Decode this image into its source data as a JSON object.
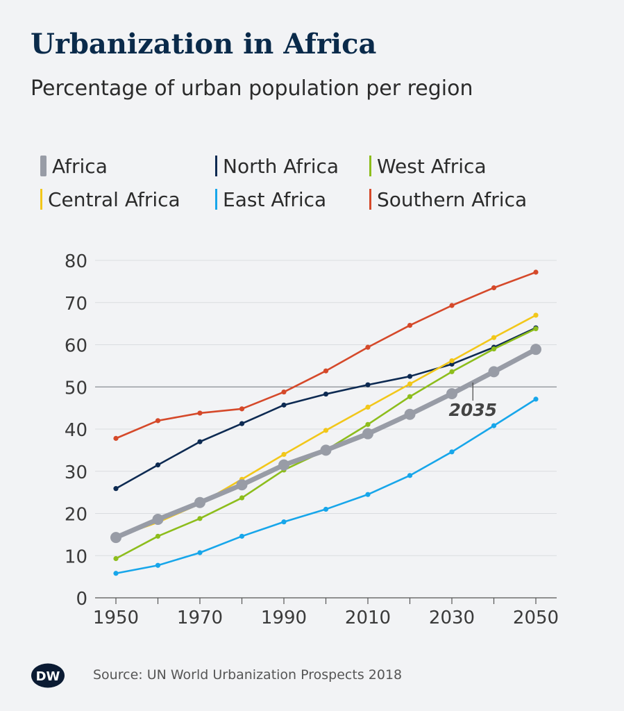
{
  "header": {
    "title": "Urbanization in Africa",
    "subtitle": "Percentage of urban population per region"
  },
  "footer": {
    "source": "Source: UN World Urbanization Prospects 2018",
    "logo_text": "DW"
  },
  "colors": {
    "Africa": "#989ca6",
    "North Africa": "#0d2a52",
    "West Africa": "#8dbd1c",
    "Central Africa": "#f2c71a",
    "East Africa": "#17a6ea",
    "Southern Africa": "#d5492a",
    "grid": "#d9dcdf",
    "axis": "#3a3a3a"
  },
  "chart_data": {
    "type": "line",
    "title": "Urbanization in Africa",
    "subtitle": "Percentage of urban population per region",
    "x": [
      1950,
      1960,
      1970,
      1980,
      1990,
      2000,
      2010,
      2020,
      2030,
      2040,
      2050
    ],
    "xticks": [
      1950,
      1970,
      1990,
      2010,
      2030,
      2050
    ],
    "yticks": [
      0,
      10,
      20,
      30,
      40,
      50,
      60,
      70,
      80
    ],
    "ylim": [
      0,
      80
    ],
    "xlim": [
      1950,
      2050
    ],
    "grid": true,
    "legend_position": "top",
    "series": [
      {
        "name": "Southern Africa",
        "values": [
          37.8,
          42.0,
          43.8,
          44.8,
          48.8,
          53.8,
          59.4,
          64.6,
          69.3,
          73.5,
          77.2
        ]
      },
      {
        "name": "North Africa",
        "values": [
          25.9,
          31.5,
          37.0,
          41.3,
          45.7,
          48.3,
          50.5,
          52.5,
          55.4,
          59.4,
          64.0
        ]
      },
      {
        "name": "Central Africa",
        "values": [
          14.4,
          17.9,
          22.3,
          28.1,
          34.0,
          39.7,
          45.2,
          50.7,
          56.2,
          61.7,
          67.0
        ]
      },
      {
        "name": "West Africa",
        "values": [
          9.3,
          14.6,
          18.8,
          23.7,
          30.3,
          35.0,
          41.1,
          47.7,
          53.6,
          59.0,
          63.8
        ]
      },
      {
        "name": "East Africa",
        "values": [
          5.8,
          7.7,
          10.7,
          14.6,
          18.0,
          21.0,
          24.5,
          29.0,
          34.6,
          40.8,
          47.1
        ]
      },
      {
        "name": "Africa",
        "values": [
          14.3,
          18.6,
          22.6,
          26.8,
          31.5,
          35.0,
          38.9,
          43.5,
          48.4,
          53.6,
          58.9
        ]
      }
    ],
    "annotations": [
      {
        "text": "2035",
        "x": 2035,
        "y": 50.7
      }
    ],
    "reference_line": {
      "y": 50
    }
  },
  "legend_order": [
    "Africa",
    "North Africa",
    "West Africa",
    "Central Africa",
    "East Africa",
    "Southern Africa"
  ]
}
